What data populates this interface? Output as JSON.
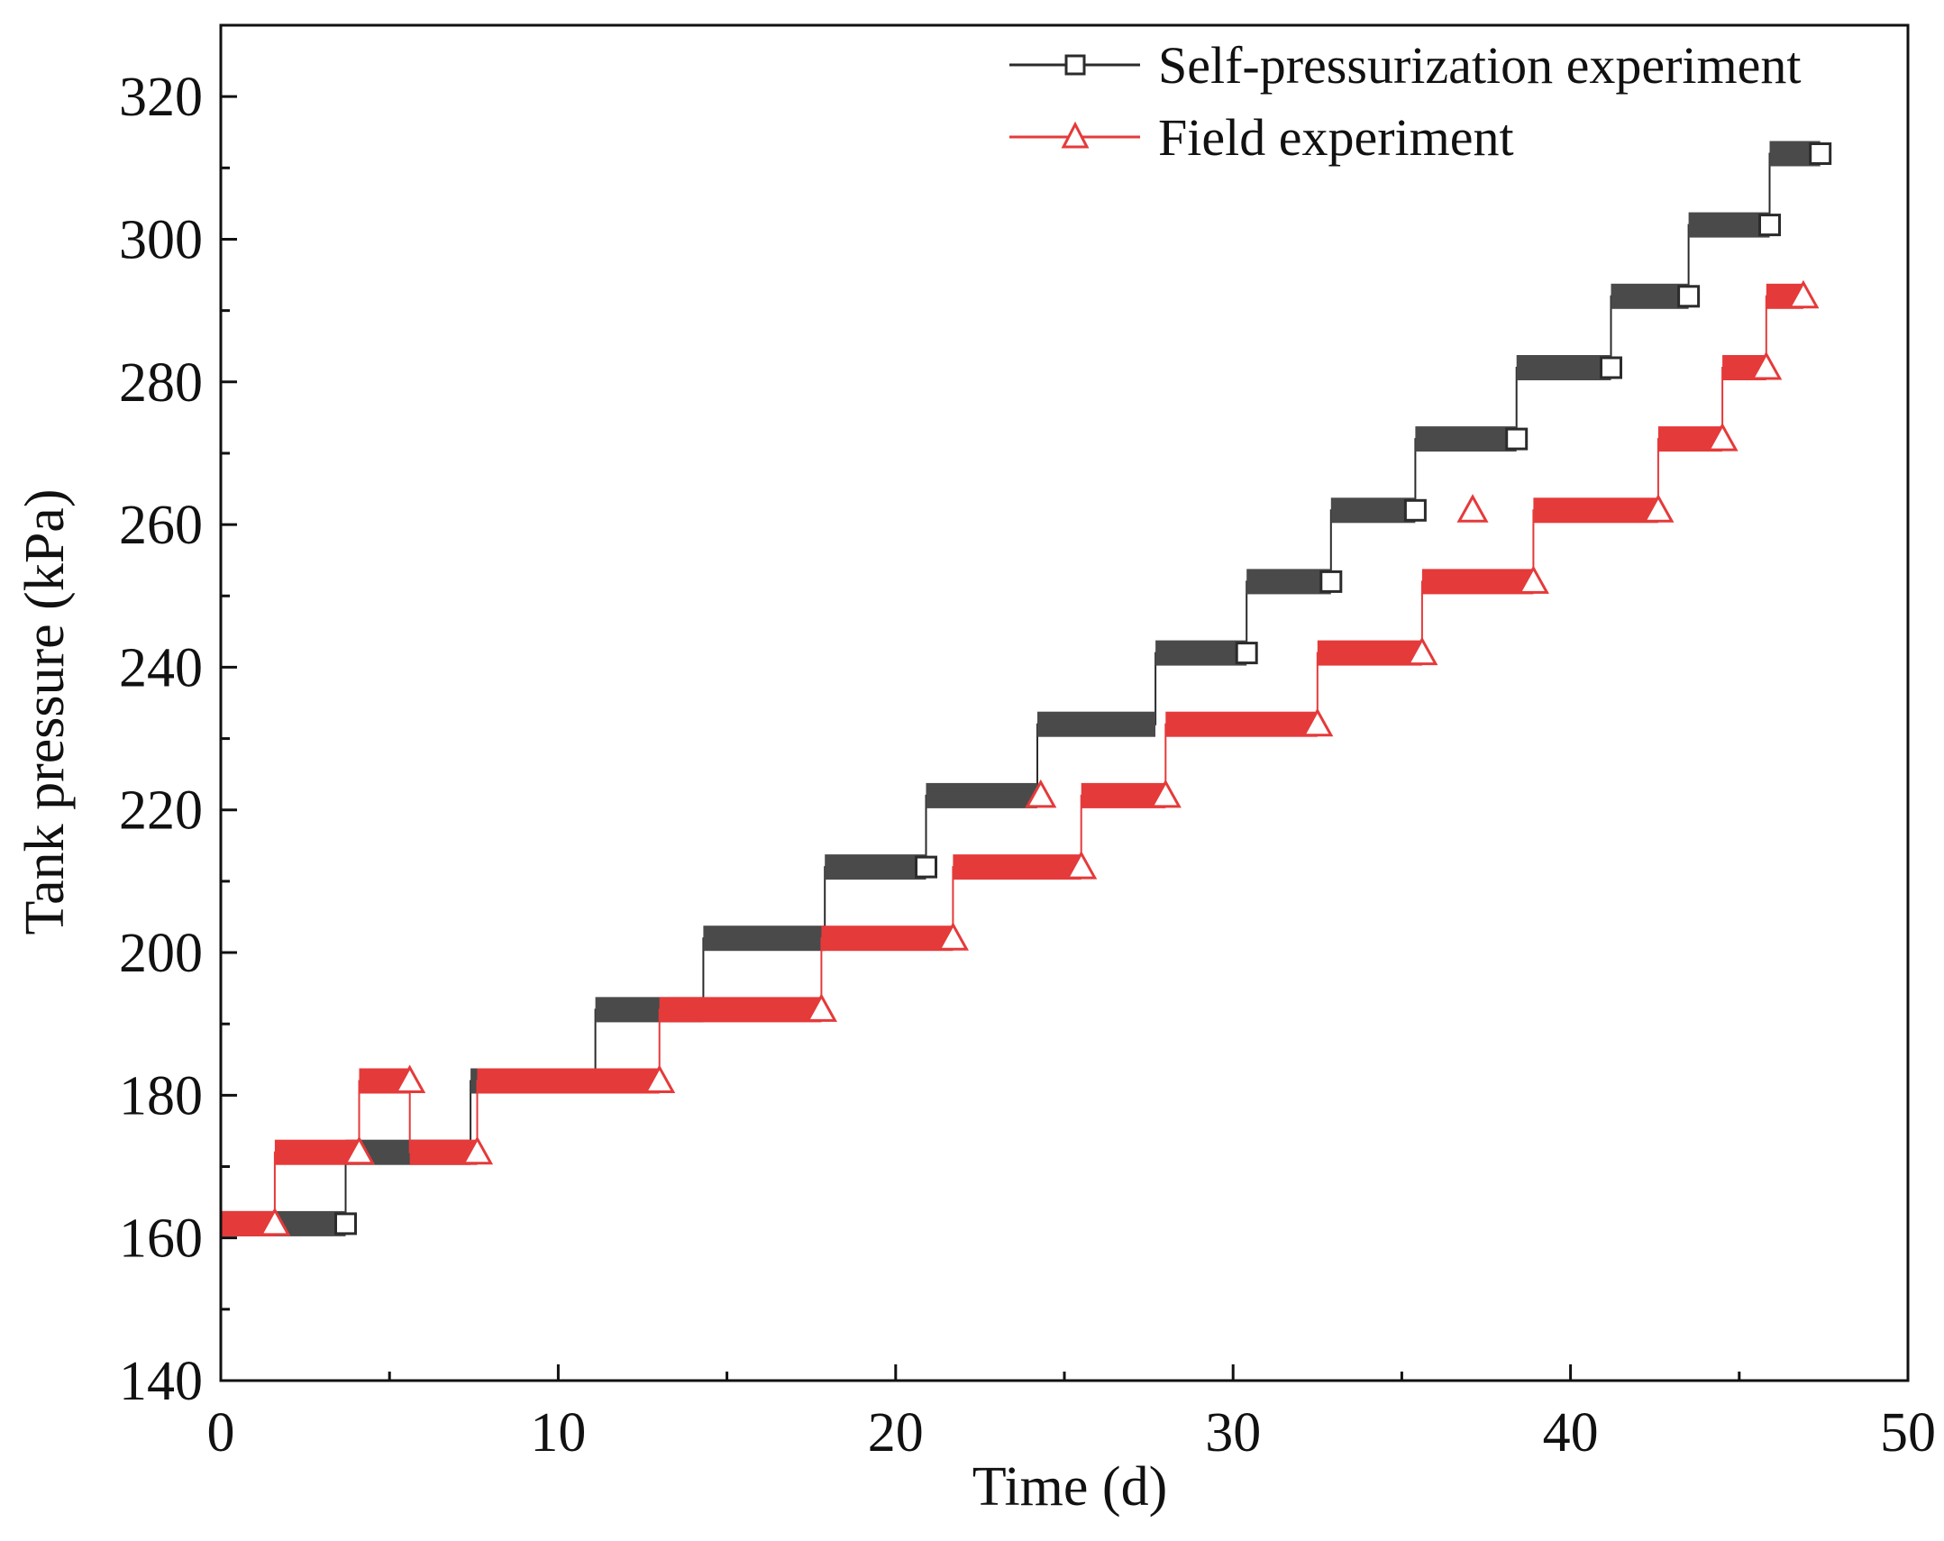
{
  "chart_data": {
    "type": "line",
    "title": "",
    "xlabel": "Time (d)",
    "ylabel": "Tank pressure (kPa)",
    "xlim": [
      0,
      50
    ],
    "ylim": [
      140,
      330
    ],
    "xticks": [
      0,
      10,
      20,
      30,
      40,
      50
    ],
    "yticks": [
      140,
      160,
      180,
      200,
      220,
      240,
      260,
      280,
      300,
      320
    ],
    "xtick_labels": [
      "0",
      "10",
      "20",
      "30",
      "40",
      "50"
    ],
    "ytick_labels": [
      "140",
      "160",
      "180",
      "200",
      "220",
      "240",
      "260",
      "280",
      "300",
      "320"
    ],
    "grid": false,
    "legend_position": "top-right",
    "series": [
      {
        "name": "Self-pressurization experiment",
        "color": "#4a4a4a",
        "marker": "square",
        "x": [
          0,
          3.7,
          3.7,
          7.4,
          7.4,
          11.1,
          11.1,
          14.3,
          14.3,
          17.9,
          17.9,
          20.9,
          20.9,
          24.2,
          24.2,
          27.7,
          27.7,
          30.4,
          30.4,
          32.9,
          32.9,
          35.4,
          35.4,
          38.4,
          38.4,
          41.2,
          41.2,
          43.5,
          43.5,
          45.9,
          45.9,
          47.4
        ],
        "y": [
          162,
          162,
          172,
          172,
          182,
          182,
          192,
          192,
          202,
          202,
          212,
          212,
          222,
          222,
          232,
          232,
          242,
          242,
          252,
          252,
          262,
          262,
          272,
          272,
          282,
          282,
          292,
          292,
          302,
          302,
          312,
          312
        ],
        "marker_points": [
          [
            3.7,
            162
          ],
          [
            20.9,
            212
          ],
          [
            30.4,
            242
          ],
          [
            32.9,
            252
          ],
          [
            35.4,
            262
          ],
          [
            38.4,
            272
          ],
          [
            41.2,
            282
          ],
          [
            43.5,
            292
          ],
          [
            45.9,
            302
          ],
          [
            47.4,
            312
          ]
        ]
      },
      {
        "name": "Field experiment",
        "color": "#e53a3a",
        "marker": "triangle",
        "x": [
          0,
          1.6,
          1.6,
          4.1,
          4.1,
          5.6,
          5.6,
          7.6,
          7.6,
          13.0,
          13.0,
          17.8,
          17.8,
          21.7,
          21.7,
          25.5,
          25.5,
          28.0,
          28.0,
          32.5,
          32.5,
          35.6,
          35.6,
          38.9,
          38.9,
          42.6,
          42.6,
          44.5,
          44.5,
          45.8,
          45.8,
          46.9
        ],
        "y": [
          162,
          162,
          172,
          172,
          182,
          182,
          172,
          172,
          182,
          182,
          192,
          192,
          202,
          202,
          212,
          212,
          222,
          222,
          232,
          232,
          242,
          242,
          252,
          252,
          262,
          262,
          272,
          272,
          282,
          282,
          292,
          292
        ],
        "marker_points": [
          [
            1.6,
            162
          ],
          [
            4.1,
            172
          ],
          [
            5.6,
            182
          ],
          [
            7.6,
            172
          ],
          [
            13.0,
            182
          ],
          [
            17.8,
            192
          ],
          [
            21.7,
            202
          ],
          [
            24.3,
            222
          ],
          [
            25.5,
            212
          ],
          [
            28.0,
            222
          ],
          [
            32.5,
            232
          ],
          [
            35.6,
            242
          ],
          [
            37.1,
            262
          ],
          [
            38.9,
            252
          ],
          [
            42.6,
            262
          ],
          [
            44.5,
            272
          ],
          [
            45.8,
            282
          ],
          [
            46.9,
            292
          ]
        ]
      }
    ]
  }
}
